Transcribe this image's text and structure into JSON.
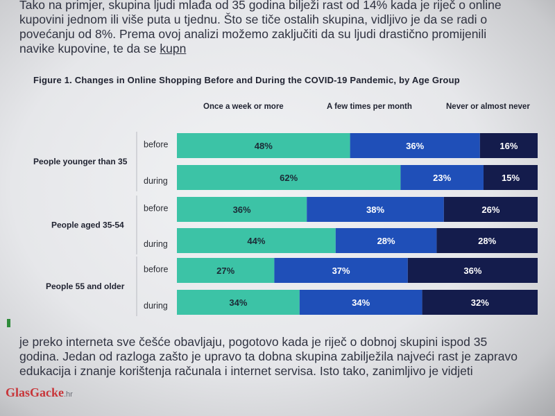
{
  "article": {
    "paragraph_top_a": "Tako na primjer, skupina ljudi mlađa od 35 godina bilježi rast od 14% kada je riječ o online\nkupovini jednom ili više puta u tjednu. Što se tiče ostalih skupina, vidljivo je da se radi o\npovećanju od 8%. Prema ovoj analizi možemo zaključiti da su ljudi drastično promijenili\nnavike kupovine, te da se ",
    "paragraph_top_b": "kupn",
    "paragraph_bottom": "je preko interneta sve češće obavljaju, pogotovo kada je riječ o dobnoj skupini ispod 35\ngodina. Jedan od razloga zašto je upravo ta dobna skupina zabilježila najveći rast je zapravo\nedukacija i znanje korištenja računala i internet servisa. Isto tako, zanimljivo je vidjeti",
    "watermark": "GlasGacke",
    "watermark_suffix": ".hr"
  },
  "chart_data": {
    "type": "bar",
    "orientation": "horizontal",
    "stacked": true,
    "title": "Figure 1. Changes in Online Shopping Before and During the COVID-19 Pandemic, by Age Group",
    "legend_placement": "top",
    "series": [
      {
        "name": "Once a week or more",
        "color": "#3cc3a6"
      },
      {
        "name": "A few times per month",
        "color": "#1f4fb8"
      },
      {
        "name": "Never or almost never",
        "color": "#141c4c"
      }
    ],
    "groups": [
      {
        "label": "People younger than 35",
        "rows": [
          {
            "period": "before",
            "values": [
              48,
              36,
              16
            ],
            "labels": [
              "48%",
              "36%",
              "16%"
            ]
          },
          {
            "period": "during",
            "values": [
              62,
              23,
              15
            ],
            "labels": [
              "62%",
              "23%",
              "15%"
            ]
          }
        ]
      },
      {
        "label": "People aged 35-54",
        "rows": [
          {
            "period": "before",
            "values": [
              36,
              38,
              26
            ],
            "labels": [
              "36%",
              "38%",
              "26%"
            ]
          },
          {
            "period": "during",
            "values": [
              44,
              28,
              28
            ],
            "labels": [
              "44%",
              "28%",
              "28%"
            ]
          }
        ]
      },
      {
        "label": "People 55 and older",
        "rows": [
          {
            "period": "before",
            "values": [
              27,
              37,
              36
            ],
            "labels": [
              "27%",
              "37%",
              "36%"
            ]
          },
          {
            "period": "during",
            "values": [
              34,
              34,
              32
            ],
            "labels": [
              "34%",
              "34%",
              "32%"
            ]
          }
        ]
      }
    ],
    "xlim": [
      0,
      100
    ]
  }
}
